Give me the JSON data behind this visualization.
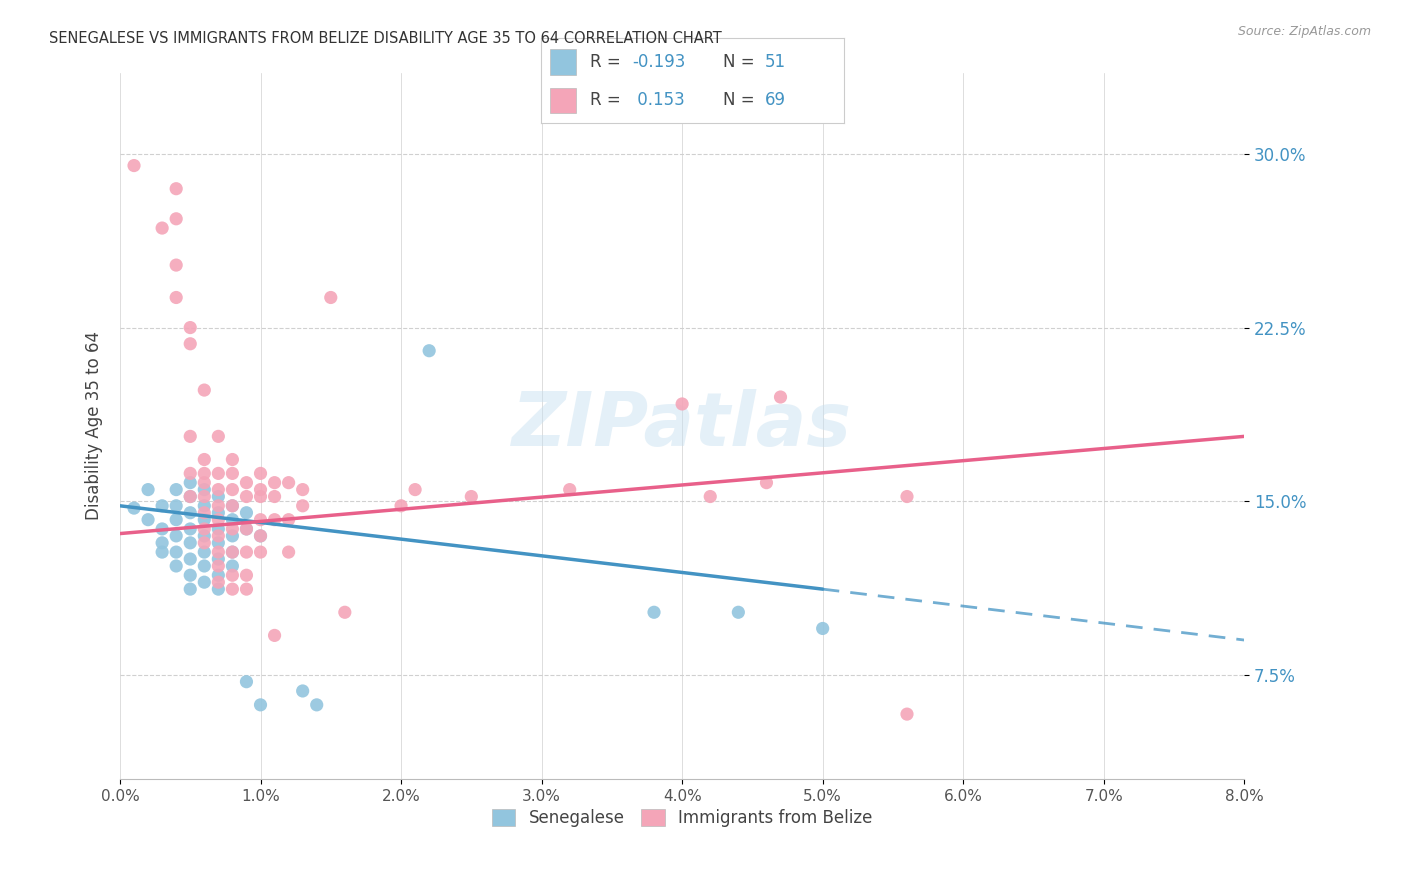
{
  "title": "SENEGALESE VS IMMIGRANTS FROM BELIZE DISABILITY AGE 35 TO 64 CORRELATION CHART",
  "source": "Source: ZipAtlas.com",
  "ylabel": "Disability Age 35 to 64",
  "ytick_vals": [
    0.075,
    0.15,
    0.225,
    0.3
  ],
  "ytick_labels": [
    "7.5%",
    "15.0%",
    "22.5%",
    "30.0%"
  ],
  "xtick_vals": [
    0.0,
    0.01,
    0.02,
    0.03,
    0.04,
    0.05,
    0.06,
    0.07,
    0.08
  ],
  "xtick_labels": [
    "0.0%",
    "1.0%",
    "2.0%",
    "3.0%",
    "4.0%",
    "5.0%",
    "6.0%",
    "7.0%",
    "8.0%"
  ],
  "xmin": 0.0,
  "xmax": 0.08,
  "ymin": 0.03,
  "ymax": 0.335,
  "legend_blue_R": "-0.193",
  "legend_blue_N": "51",
  "legend_pink_R": "0.153",
  "legend_pink_N": "69",
  "watermark": "ZIPatlas",
  "blue_color": "#92c5de",
  "pink_color": "#f4a5b8",
  "blue_line_color": "#4393c3",
  "pink_line_color": "#e8608a",
  "tick_color": "#4393c3",
  "grid_color": "#d0d0d0",
  "blue_scatter": [
    [
      0.001,
      0.147
    ],
    [
      0.002,
      0.155
    ],
    [
      0.002,
      0.142
    ],
    [
      0.003,
      0.148
    ],
    [
      0.003,
      0.138
    ],
    [
      0.003,
      0.132
    ],
    [
      0.003,
      0.128
    ],
    [
      0.004,
      0.155
    ],
    [
      0.004,
      0.148
    ],
    [
      0.004,
      0.142
    ],
    [
      0.004,
      0.135
    ],
    [
      0.004,
      0.128
    ],
    [
      0.004,
      0.122
    ],
    [
      0.005,
      0.158
    ],
    [
      0.005,
      0.152
    ],
    [
      0.005,
      0.145
    ],
    [
      0.005,
      0.138
    ],
    [
      0.005,
      0.132
    ],
    [
      0.005,
      0.125
    ],
    [
      0.005,
      0.118
    ],
    [
      0.005,
      0.112
    ],
    [
      0.006,
      0.155
    ],
    [
      0.006,
      0.148
    ],
    [
      0.006,
      0.142
    ],
    [
      0.006,
      0.135
    ],
    [
      0.006,
      0.128
    ],
    [
      0.006,
      0.122
    ],
    [
      0.006,
      0.115
    ],
    [
      0.007,
      0.152
    ],
    [
      0.007,
      0.145
    ],
    [
      0.007,
      0.138
    ],
    [
      0.007,
      0.132
    ],
    [
      0.007,
      0.125
    ],
    [
      0.007,
      0.118
    ],
    [
      0.007,
      0.112
    ],
    [
      0.008,
      0.148
    ],
    [
      0.008,
      0.142
    ],
    [
      0.008,
      0.135
    ],
    [
      0.008,
      0.128
    ],
    [
      0.008,
      0.122
    ],
    [
      0.009,
      0.145
    ],
    [
      0.009,
      0.138
    ],
    [
      0.009,
      0.072
    ],
    [
      0.01,
      0.135
    ],
    [
      0.01,
      0.062
    ],
    [
      0.013,
      0.068
    ],
    [
      0.014,
      0.062
    ],
    [
      0.022,
      0.215
    ],
    [
      0.038,
      0.102
    ],
    [
      0.044,
      0.102
    ],
    [
      0.05,
      0.095
    ]
  ],
  "pink_scatter": [
    [
      0.001,
      0.295
    ],
    [
      0.003,
      0.268
    ],
    [
      0.004,
      0.285
    ],
    [
      0.004,
      0.272
    ],
    [
      0.004,
      0.252
    ],
    [
      0.004,
      0.238
    ],
    [
      0.005,
      0.225
    ],
    [
      0.005,
      0.218
    ],
    [
      0.005,
      0.178
    ],
    [
      0.005,
      0.162
    ],
    [
      0.005,
      0.152
    ],
    [
      0.006,
      0.198
    ],
    [
      0.006,
      0.168
    ],
    [
      0.006,
      0.162
    ],
    [
      0.006,
      0.158
    ],
    [
      0.006,
      0.152
    ],
    [
      0.006,
      0.145
    ],
    [
      0.006,
      0.138
    ],
    [
      0.006,
      0.132
    ],
    [
      0.007,
      0.178
    ],
    [
      0.007,
      0.162
    ],
    [
      0.007,
      0.155
    ],
    [
      0.007,
      0.148
    ],
    [
      0.007,
      0.142
    ],
    [
      0.007,
      0.135
    ],
    [
      0.007,
      0.128
    ],
    [
      0.007,
      0.122
    ],
    [
      0.007,
      0.115
    ],
    [
      0.008,
      0.168
    ],
    [
      0.008,
      0.162
    ],
    [
      0.008,
      0.155
    ],
    [
      0.008,
      0.148
    ],
    [
      0.008,
      0.138
    ],
    [
      0.008,
      0.128
    ],
    [
      0.008,
      0.118
    ],
    [
      0.008,
      0.112
    ],
    [
      0.009,
      0.158
    ],
    [
      0.009,
      0.152
    ],
    [
      0.009,
      0.138
    ],
    [
      0.009,
      0.128
    ],
    [
      0.009,
      0.118
    ],
    [
      0.009,
      0.112
    ],
    [
      0.01,
      0.162
    ],
    [
      0.01,
      0.155
    ],
    [
      0.01,
      0.152
    ],
    [
      0.01,
      0.142
    ],
    [
      0.01,
      0.135
    ],
    [
      0.01,
      0.128
    ],
    [
      0.011,
      0.158
    ],
    [
      0.011,
      0.152
    ],
    [
      0.011,
      0.142
    ],
    [
      0.011,
      0.092
    ],
    [
      0.012,
      0.158
    ],
    [
      0.012,
      0.142
    ],
    [
      0.012,
      0.128
    ],
    [
      0.013,
      0.155
    ],
    [
      0.013,
      0.148
    ],
    [
      0.015,
      0.238
    ],
    [
      0.016,
      0.102
    ],
    [
      0.02,
      0.148
    ],
    [
      0.021,
      0.155
    ],
    [
      0.025,
      0.152
    ],
    [
      0.032,
      0.155
    ],
    [
      0.04,
      0.192
    ],
    [
      0.042,
      0.152
    ],
    [
      0.046,
      0.158
    ],
    [
      0.047,
      0.195
    ],
    [
      0.056,
      0.058
    ],
    [
      0.056,
      0.152
    ]
  ]
}
